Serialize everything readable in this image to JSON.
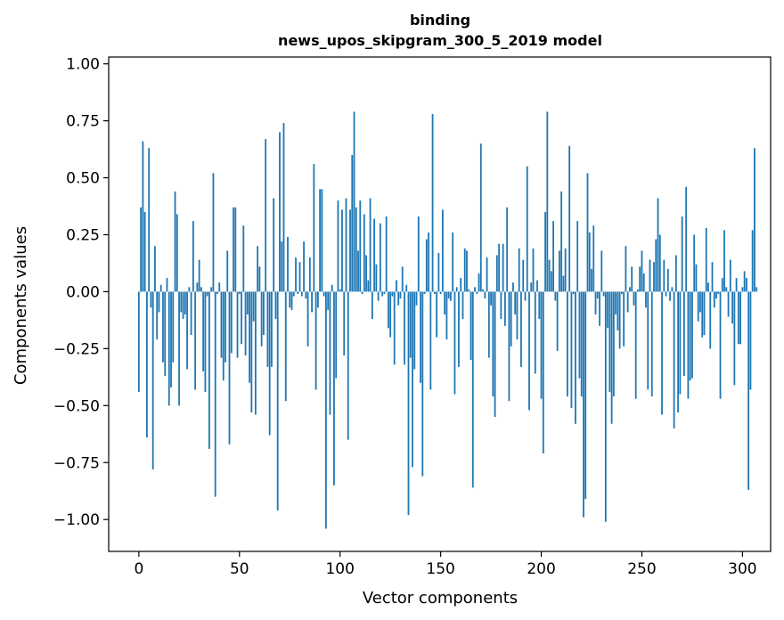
{
  "chart_data": {
    "type": "bar",
    "title_lines": [
      "binding",
      "news_upos_skipgram_300_5_2019 model"
    ],
    "xlabel": "Vector components",
    "ylabel": "Components values",
    "xlim": [
      -15,
      314
    ],
    "ylim": [
      -1.14,
      1.03
    ],
    "xticks": [
      0,
      50,
      100,
      150,
      200,
      250,
      300
    ],
    "xtick_labels": [
      "0",
      "50",
      "100",
      "150",
      "200",
      "250",
      "300"
    ],
    "yticks": [
      -1.0,
      -0.75,
      -0.5,
      -0.25,
      0.0,
      0.25,
      0.5,
      0.75,
      1.0
    ],
    "ytick_labels": [
      "−1.00",
      "−0.75",
      "−0.50",
      "−0.25",
      "0.00",
      "0.25",
      "0.50",
      "0.75",
      "1.00"
    ],
    "color": "#1f77b4",
    "grid": false,
    "values": [
      -0.44,
      0.37,
      0.66,
      0.35,
      -0.64,
      0.63,
      -0.07,
      -0.78,
      0.2,
      -0.21,
      -0.09,
      0.03,
      -0.31,
      -0.37,
      0.06,
      -0.5,
      -0.42,
      -0.31,
      0.44,
      0.34,
      -0.5,
      -0.09,
      -0.12,
      -0.1,
      -0.34,
      0.02,
      -0.19,
      0.31,
      -0.43,
      0.04,
      0.14,
      0.02,
      -0.35,
      -0.44,
      -0.02,
      -0.69,
      0.02,
      0.52,
      -0.9,
      -0.01,
      0.04,
      -0.29,
      -0.39,
      -0.31,
      0.18,
      -0.67,
      -0.27,
      0.37,
      0.37,
      -0.29,
      -0.01,
      -0.23,
      0.29,
      -0.28,
      -0.1,
      -0.4,
      -0.53,
      -0.13,
      -0.54,
      0.2,
      0.11,
      -0.24,
      -0.19,
      0.67,
      -0.33,
      -0.63,
      -0.33,
      0.41,
      -0.12,
      -0.96,
      0.7,
      0.22,
      0.74,
      -0.48,
      0.24,
      -0.07,
      -0.08,
      -0.02,
      0.15,
      -0.01,
      0.13,
      -0.02,
      0.22,
      -0.03,
      -0.24,
      0.15,
      -0.09,
      0.56,
      -0.43,
      -0.07,
      0.45,
      0.45,
      -0.02,
      -1.04,
      -0.08,
      -0.54,
      0.03,
      -0.85,
      -0.38,
      0.4,
      0.01,
      0.36,
      -0.28,
      0.41,
      -0.65,
      0.36,
      0.6,
      0.79,
      0.37,
      0.18,
      0.4,
      -0.01,
      0.34,
      0.16,
      0.05,
      0.41,
      -0.12,
      0.32,
      0.12,
      -0.04,
      0.3,
      -0.02,
      -0.01,
      0.33,
      -0.16,
      -0.2,
      -0.02,
      -0.32,
      0.05,
      -0.06,
      -0.03,
      0.11,
      -0.32,
      0.03,
      -0.98,
      -0.29,
      -0.77,
      -0.34,
      -0.06,
      0.33,
      -0.4,
      -0.81,
      -0.01,
      0.23,
      0.26,
      -0.43,
      0.78,
      -0.01,
      -0.2,
      0.17,
      -0.01,
      0.36,
      -0.1,
      -0.21,
      -0.03,
      -0.04,
      0.26,
      -0.45,
      0.02,
      -0.33,
      0.06,
      -0.12,
      0.19,
      0.18,
      0.01,
      -0.3,
      -0.86,
      0.02,
      -0.01,
      0.08,
      0.65,
      0.01,
      -0.03,
      0.15,
      -0.29,
      -0.06,
      -0.46,
      -0.55,
      0.16,
      0.21,
      -0.12,
      0.21,
      -0.15,
      0.37,
      -0.48,
      -0.24,
      0.04,
      -0.1,
      -0.21,
      0.19,
      -0.33,
      0.14,
      -0.04,
      0.55,
      -0.52,
      0.04,
      0.19,
      -0.36,
      0.05,
      -0.12,
      -0.47,
      -0.71,
      0.35,
      0.79,
      0.14,
      0.09,
      0.31,
      -0.04,
      -0.26,
      0.18,
      0.44,
      0.07,
      0.19,
      -0.46,
      0.64,
      -0.51,
      -0.01,
      -0.58,
      0.31,
      -0.38,
      -0.46,
      -0.99,
      -0.91,
      0.52,
      0.26,
      0.1,
      0.29,
      -0.1,
      -0.03,
      -0.15,
      0.18,
      -0.02,
      -1.01,
      -0.16,
      -0.44,
      -0.58,
      -0.46,
      -0.1,
      -0.17,
      -0.25,
      -0.01,
      -0.24,
      0.2,
      -0.09,
      0.02,
      0.11,
      -0.06,
      -0.47,
      0.01,
      0.11,
      0.18,
      0.08,
      -0.07,
      -0.43,
      0.14,
      -0.46,
      0.13,
      0.23,
      0.41,
      0.25,
      -0.54,
      0.14,
      -0.02,
      0.1,
      -0.04,
      0.02,
      -0.6,
      0.16,
      -0.53,
      -0.45,
      0.33,
      -0.37,
      0.46,
      -0.47,
      -0.39,
      -0.38,
      0.25,
      0.12,
      -0.13,
      -0.09,
      -0.2,
      -0.19,
      0.28,
      0.04,
      -0.25,
      0.13,
      -0.07,
      -0.03,
      -0.01,
      -0.47,
      0.06,
      0.27,
      0.02,
      -0.11,
      0.14,
      -0.14,
      -0.41,
      0.06,
      -0.23,
      -0.23,
      0.02,
      0.09,
      0.06,
      -0.87,
      -0.43,
      0.27,
      0.63,
      0.02
    ]
  }
}
